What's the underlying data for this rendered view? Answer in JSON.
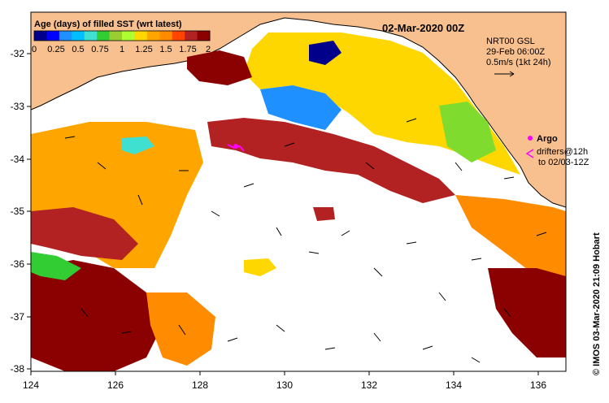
{
  "map": {
    "date_title": "02-Mar-2020 00Z",
    "colorbar": {
      "title": "Age (days) of filled SST (wrt latest)",
      "tick_labels": [
        "0",
        "0.25",
        "0.5",
        "0.75",
        "1",
        "1.25",
        "1.5",
        "1.75",
        "2"
      ],
      "range": [
        0,
        2
      ],
      "colors": [
        "#00008b",
        "#0000ff",
        "#1e90ff",
        "#00bfff",
        "#40e0d0",
        "#32cd32",
        "#9acd32",
        "#adff2f",
        "#ffd700",
        "#ffa500",
        "#ff8c00",
        "#ff4500",
        "#b22222",
        "#8b0000"
      ]
    },
    "current_info": {
      "line1": "NRT00 GSL",
      "line2": "29-Feb 06:00Z",
      "line3": "0.5m/s (1kt 24h)"
    },
    "argo_legend": {
      "argo_label": "Argo",
      "drifters_line1": "drifters@12h",
      "drifters_line2": "to 02/03-12Z"
    },
    "credit": "© IMOS 03-Mar-2020 21:09 Hobart",
    "x_axis": {
      "ticks": [
        "124",
        "126",
        "128",
        "130",
        "132",
        "134",
        "136"
      ],
      "range": [
        124,
        136.7
      ]
    },
    "y_axis": {
      "ticks": [
        "-32",
        "-33",
        "-34",
        "-35",
        "-36",
        "-37",
        "-38"
      ],
      "range": [
        -38.1,
        -31.5
      ]
    },
    "colors": {
      "land": "#f9c08f",
      "no_data": "#ffffff",
      "argo_marker": "#ff00ff"
    }
  }
}
